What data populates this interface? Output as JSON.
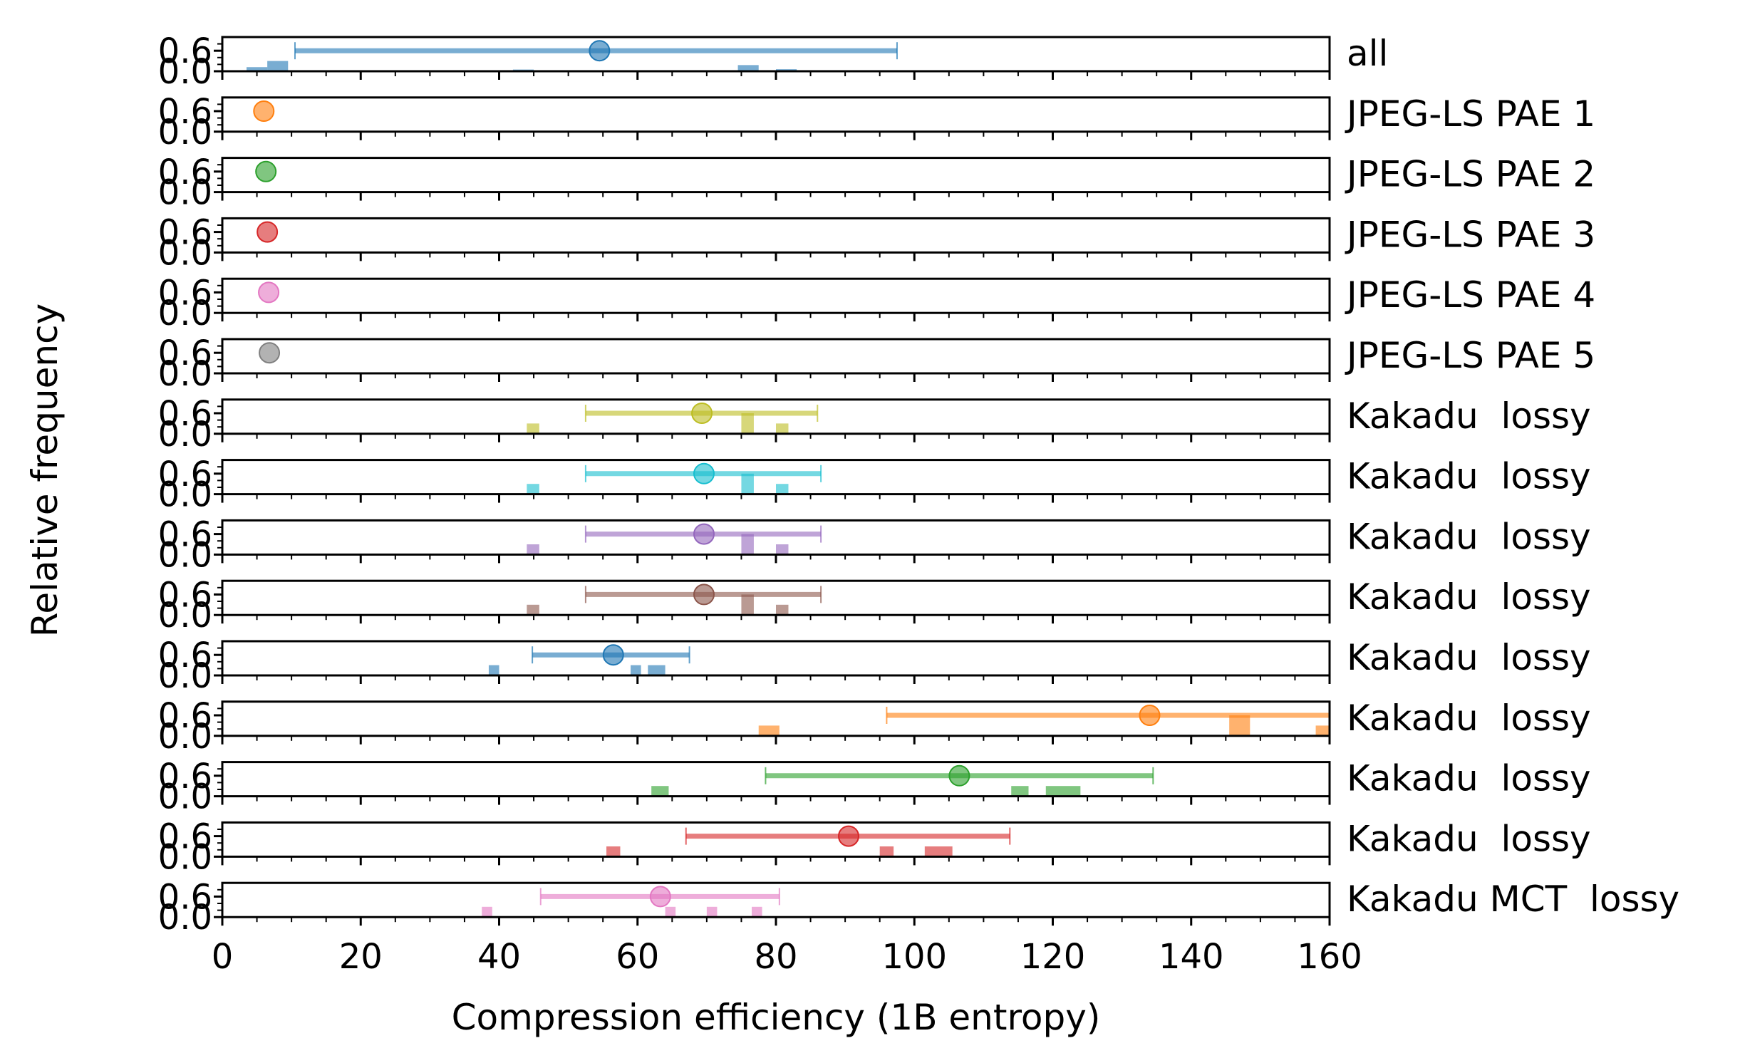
{
  "chart_data": {
    "type": "scatter",
    "subtype": "stacked-panels: per-row histogram bars + mean marker + min-max range line",
    "xlabel": "Compression efficiency (1B entropy)",
    "ylabel": "Relative frequency",
    "xlim": [
      0,
      160
    ],
    "x_ticks": [
      0,
      20,
      40,
      60,
      80,
      100,
      120,
      140,
      160
    ],
    "y_ticks": [
      0.0,
      0.6
    ],
    "ylim": [
      0,
      1
    ],
    "grid": false,
    "rows": [
      {
        "label": "all",
        "color": "#1f77b4",
        "mean": 54.5,
        "range": [
          10.5,
          97.5
        ],
        "bins": [
          {
            "x": 3.5,
            "w": 3,
            "h": 0.12
          },
          {
            "x": 6.5,
            "w": 3,
            "h": 0.3
          },
          {
            "x": 42,
            "w": 3,
            "h": 0.05
          },
          {
            "x": 74.5,
            "w": 3,
            "h": 0.18
          },
          {
            "x": 80,
            "w": 3,
            "h": 0.06
          }
        ]
      },
      {
        "label": "JPEG-LS PAE 1",
        "color": "#ff7f0e",
        "mean": 6,
        "range": null,
        "bins": []
      },
      {
        "label": "JPEG-LS PAE 2",
        "color": "#2ca02c",
        "mean": 6.3,
        "range": null,
        "bins": []
      },
      {
        "label": "JPEG-LS PAE 3",
        "color": "#d62728",
        "mean": 6.5,
        "range": null,
        "bins": []
      },
      {
        "label": "JPEG-LS PAE 4",
        "color": "#e377c2",
        "mean": 6.7,
        "range": null,
        "bins": []
      },
      {
        "label": "JPEG-LS PAE 5",
        "color": "#7f7f7f",
        "mean": 6.8,
        "range": null,
        "bins": []
      },
      {
        "label": "Kakadu  lossy",
        "color": "#bcbd22",
        "mean": 69.3,
        "range": [
          52.5,
          86
        ],
        "bins": [
          {
            "x": 44,
            "w": 1.8,
            "h": 0.3
          },
          {
            "x": 75,
            "w": 1.8,
            "h": 0.6
          },
          {
            "x": 80,
            "w": 1.8,
            "h": 0.3
          }
        ]
      },
      {
        "label": "Kakadu  lossy",
        "color": "#17becf",
        "mean": 69.6,
        "range": [
          52.5,
          86.5
        ],
        "bins": [
          {
            "x": 44,
            "w": 1.8,
            "h": 0.3
          },
          {
            "x": 75,
            "w": 1.8,
            "h": 0.6
          },
          {
            "x": 80,
            "w": 1.8,
            "h": 0.3
          }
        ]
      },
      {
        "label": "Kakadu  lossy",
        "color": "#9467bd",
        "mean": 69.6,
        "range": [
          52.5,
          86.5
        ],
        "bins": [
          {
            "x": 44,
            "w": 1.8,
            "h": 0.3
          },
          {
            "x": 75,
            "w": 1.8,
            "h": 0.6
          },
          {
            "x": 80,
            "w": 1.8,
            "h": 0.3
          }
        ]
      },
      {
        "label": "Kakadu  lossy",
        "color": "#8c564b",
        "mean": 69.6,
        "range": [
          52.5,
          86.5
        ],
        "bins": [
          {
            "x": 44,
            "w": 1.8,
            "h": 0.3
          },
          {
            "x": 75,
            "w": 1.8,
            "h": 0.6
          },
          {
            "x": 80,
            "w": 1.8,
            "h": 0.3
          }
        ]
      },
      {
        "label": "Kakadu  lossy",
        "color": "#1f77b4",
        "mean": 56.5,
        "range": [
          44.8,
          67.5
        ],
        "bins": [
          {
            "x": 38.5,
            "w": 1.5,
            "h": 0.3
          },
          {
            "x": 59,
            "w": 1.5,
            "h": 0.3
          },
          {
            "x": 61.5,
            "w": 2.5,
            "h": 0.3
          }
        ]
      },
      {
        "label": "Kakadu  lossy",
        "color": "#ff7f0e",
        "mean": 134,
        "range": [
          96,
          160
        ],
        "bins": [
          {
            "x": 77.5,
            "w": 3,
            "h": 0.3
          },
          {
            "x": 145.5,
            "w": 3,
            "h": 0.6
          },
          {
            "x": 158,
            "w": 2,
            "h": 0.3
          }
        ]
      },
      {
        "label": "Kakadu  lossy",
        "color": "#2ca02c",
        "mean": 106.5,
        "range": [
          78.5,
          134.5
        ],
        "bins": [
          {
            "x": 62,
            "w": 2.5,
            "h": 0.3
          },
          {
            "x": 114,
            "w": 2.5,
            "h": 0.3
          },
          {
            "x": 119,
            "w": 5,
            "h": 0.3
          }
        ]
      },
      {
        "label": "Kakadu  lossy",
        "color": "#d62728",
        "mean": 90.5,
        "range": [
          67,
          113.8
        ],
        "bins": [
          {
            "x": 55.5,
            "w": 2,
            "h": 0.3
          },
          {
            "x": 95,
            "w": 2,
            "h": 0.3
          },
          {
            "x": 101.5,
            "w": 4,
            "h": 0.3
          }
        ]
      },
      {
        "label": "Kakadu MCT  lossy",
        "color": "#e377c2",
        "mean": 63.3,
        "range": [
          46,
          80.5
        ],
        "bins": [
          {
            "x": 37.5,
            "w": 1.5,
            "h": 0.3
          },
          {
            "x": 64,
            "w": 1.5,
            "h": 0.3
          },
          {
            "x": 70,
            "w": 1.5,
            "h": 0.3
          },
          {
            "x": 76.5,
            "w": 1.5,
            "h": 0.3
          }
        ]
      }
    ]
  }
}
